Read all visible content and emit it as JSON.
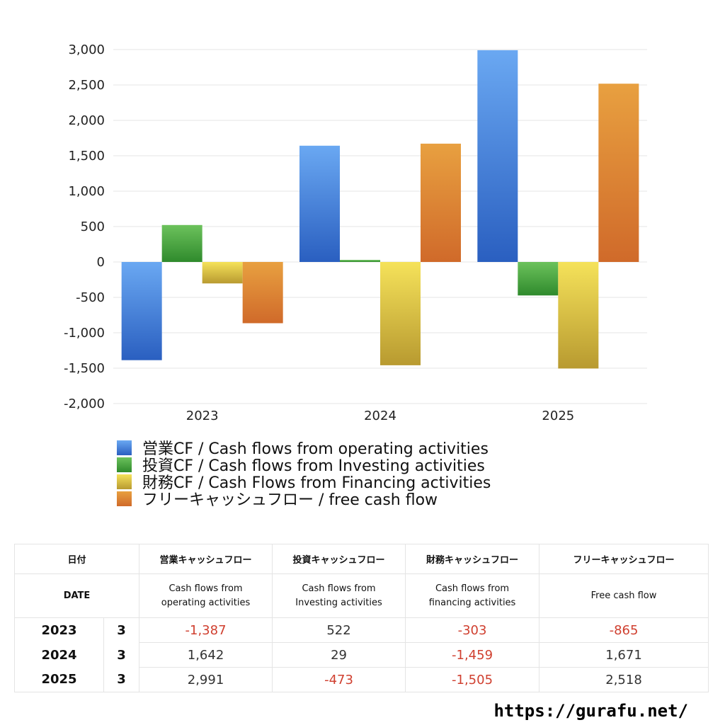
{
  "chart_data": {
    "type": "bar",
    "categories": [
      "2023",
      "2024",
      "2025"
    ],
    "series": [
      {
        "name": "営業CF / Cash flows from operating activities",
        "values": [
          -1387,
          1642,
          2991
        ],
        "color_top": "#6aa8f2",
        "color_bottom": "#2a5fc0"
      },
      {
        "name": "投資CF / Cash flows from Investing activities",
        "values": [
          522,
          29,
          -473
        ],
        "color_top": "#6cc25c",
        "color_bottom": "#2f8a2c"
      },
      {
        "name": "財務CF / Cash Flows from Financing activities",
        "values": [
          -303,
          -1459,
          -1505
        ],
        "color_top": "#f5e25a",
        "color_bottom": "#b89a30"
      },
      {
        "name": "フリーキャッシュフロー / free cash flow",
        "values": [
          -865,
          1671,
          2518
        ],
        "color_top": "#e8a040",
        "color_bottom": "#d06a2a"
      }
    ],
    "ylim": [
      -2000,
      3000
    ],
    "yticks": [
      "3,000",
      "2,500",
      "2,000",
      "1,500",
      "1,000",
      "500",
      "0",
      "-500",
      "-1,000",
      "-1,500",
      "-2,000"
    ],
    "grid": true,
    "legend": "bottom"
  },
  "table": {
    "headers_ja": [
      "日付",
      "営業キャッシュフロー",
      "投資キャッシュフロー",
      "財務キャッシュフロー",
      "フリーキャッシュフロー"
    ],
    "headers_en": [
      "DATE",
      "Cash flows from\noperating activities",
      "Cash flows from\nInvesting activities",
      "Cash flows from\nfinancing activities",
      "Free cash flow"
    ],
    "rows": [
      {
        "year": "2023",
        "month": "3",
        "values": [
          "-1,387",
          "522",
          "-303",
          "-865"
        ]
      },
      {
        "year": "2024",
        "month": "3",
        "values": [
          "1,642",
          "29",
          "-1,459",
          "1,671"
        ]
      },
      {
        "year": "2025",
        "month": "3",
        "values": [
          "2,991",
          "-473",
          "-1,505",
          "2,518"
        ]
      }
    ]
  },
  "footer": {
    "url": "https://gurafu.net/"
  }
}
